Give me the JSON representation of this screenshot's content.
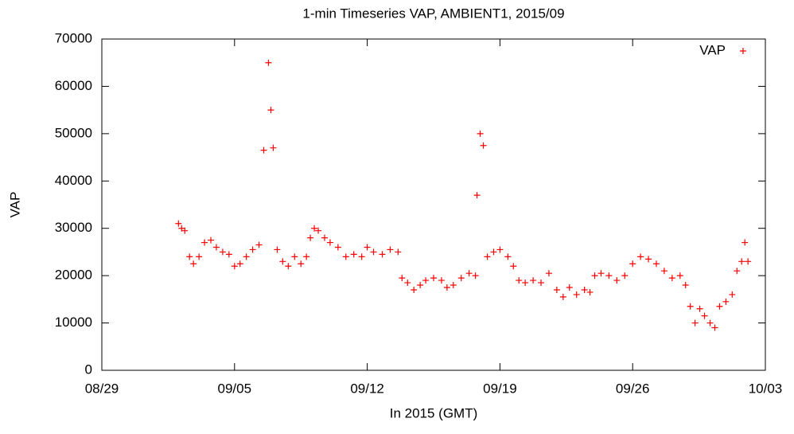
{
  "chart_data": {
    "type": "scatter",
    "title": "1-min Timeseries VAP, AMBIENT1, 2015/09",
    "xlabel": "In 2015 (GMT)",
    "ylabel": "VAP",
    "legend": "top right",
    "xlim": [
      "2015-08-29T00:00",
      "2015-10-03T00:00"
    ],
    "xticks": [
      {
        "value": "2015-08-29T00:00",
        "label": "08/29"
      },
      {
        "value": "2015-09-05T00:00",
        "label": "09/05"
      },
      {
        "value": "2015-09-12T00:00",
        "label": "09/12"
      },
      {
        "value": "2015-09-19T00:00",
        "label": "09/19"
      },
      {
        "value": "2015-09-26T00:00",
        "label": "09/26"
      },
      {
        "value": "2015-10-03T00:00",
        "label": "10/03"
      }
    ],
    "ylim": [
      0,
      70000
    ],
    "yticks": [
      0,
      10000,
      20000,
      30000,
      40000,
      50000,
      60000,
      70000
    ],
    "series": [
      {
        "name": "VAP",
        "color": "#ff0000",
        "x": [
          "2015-09-02T01:00",
          "2015-09-02T05:00",
          "2015-09-02T09:00",
          "2015-09-02T15:00",
          "2015-09-02T20:00",
          "2015-09-03T03:00",
          "2015-09-03T10:00",
          "2015-09-03T18:00",
          "2015-09-04T01:00",
          "2015-09-04T09:00",
          "2015-09-04T17:00",
          "2015-09-05T00:00",
          "2015-09-05T07:00",
          "2015-09-05T15:00",
          "2015-09-05T23:00",
          "2015-09-06T07:00",
          "2015-09-06T13:00",
          "2015-09-06T19:00",
          "2015-09-06T22:00",
          "2015-09-07T01:00",
          "2015-09-07T06:00",
          "2015-09-07T13:00",
          "2015-09-07T20:00",
          "2015-09-08T04:00",
          "2015-09-08T12:00",
          "2015-09-08T19:00",
          "2015-09-09T00:00",
          "2015-09-09T05:00",
          "2015-09-09T10:00",
          "2015-09-09T18:00",
          "2015-09-10T01:00",
          "2015-09-10T11:00",
          "2015-09-10T21:00",
          "2015-09-11T07:00",
          "2015-09-11T17:00",
          "2015-09-12T00:00",
          "2015-09-12T08:00",
          "2015-09-12T19:00",
          "2015-09-13T05:00",
          "2015-09-13T15:00",
          "2015-09-13T20:00",
          "2015-09-14T03:00",
          "2015-09-14T11:00",
          "2015-09-14T19:00",
          "2015-09-15T02:00",
          "2015-09-15T12:00",
          "2015-09-15T22:00",
          "2015-09-16T05:00",
          "2015-09-16T13:00",
          "2015-09-16T23:00",
          "2015-09-17T09:00",
          "2015-09-17T17:00",
          "2015-09-17T19:00",
          "2015-09-17T23:00",
          "2015-09-18T03:00",
          "2015-09-18T08:00",
          "2015-09-18T16:00",
          "2015-09-19T00:00",
          "2015-09-19T10:00",
          "2015-09-19T17:00",
          "2015-09-20T00:00",
          "2015-09-20T08:00",
          "2015-09-20T18:00",
          "2015-09-21T04:00",
          "2015-09-21T14:00",
          "2015-09-22T00:00",
          "2015-09-22T08:00",
          "2015-09-22T16:00",
          "2015-09-23T01:00",
          "2015-09-23T11:00",
          "2015-09-23T18:00",
          "2015-09-24T00:00",
          "2015-09-24T08:00",
          "2015-09-24T18:00",
          "2015-09-25T04:00",
          "2015-09-25T14:00",
          "2015-09-26T00:00",
          "2015-09-26T10:00",
          "2015-09-26T20:00",
          "2015-09-27T06:00",
          "2015-09-27T16:00",
          "2015-09-28T02:00",
          "2015-09-28T12:00",
          "2015-09-28T19:00",
          "2015-09-29T01:00",
          "2015-09-29T07:00",
          "2015-09-29T13:00",
          "2015-09-29T19:00",
          "2015-09-30T02:00",
          "2015-09-30T08:00",
          "2015-09-30T14:00",
          "2015-09-30T22:00",
          "2015-10-01T06:00",
          "2015-10-01T12:00",
          "2015-10-01T18:00",
          "2015-10-01T22:00",
          "2015-10-02T02:00"
        ],
        "values": [
          31000,
          30000,
          29500,
          24000,
          22500,
          24000,
          27000,
          27500,
          26000,
          25000,
          24500,
          22000,
          22500,
          24000,
          25500,
          26500,
          46500,
          65000,
          55000,
          47000,
          25500,
          23000,
          22000,
          24000,
          22500,
          24000,
          28000,
          30000,
          29500,
          28000,
          27000,
          26000,
          24000,
          24500,
          24000,
          26000,
          25000,
          24500,
          25500,
          25000,
          19500,
          18500,
          17000,
          18000,
          19000,
          19500,
          19000,
          17500,
          18000,
          19500,
          20500,
          20000,
          37000,
          50000,
          47500,
          24000,
          25000,
          25500,
          24000,
          22000,
          19000,
          18500,
          19000,
          18500,
          20500,
          17000,
          15500,
          17500,
          16000,
          17000,
          16500,
          20000,
          20500,
          20000,
          19000,
          20000,
          22500,
          24000,
          23500,
          22500,
          21000,
          19500,
          20000,
          18000,
          13500,
          10000,
          13000,
          11500,
          10000,
          9000,
          13500,
          14500,
          16000,
          21000,
          23000,
          27000,
          23000
        ]
      }
    ]
  }
}
